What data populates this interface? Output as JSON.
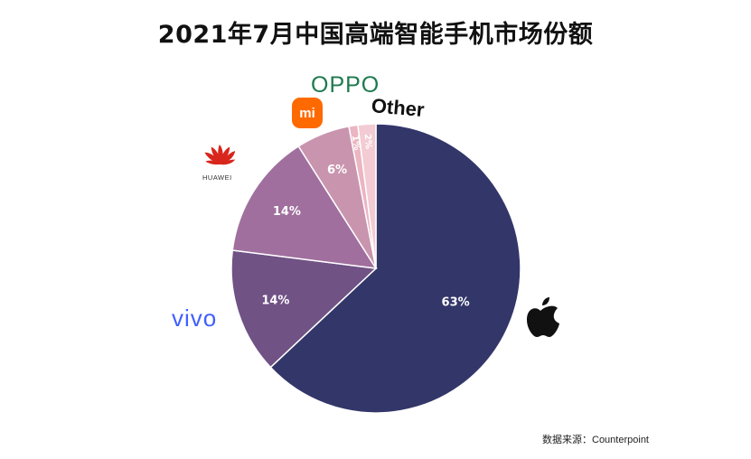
{
  "title": "2021年7月中国高端智能手机市场份额",
  "source": "数据来源：Counterpoint",
  "brands": {
    "oppo": "OPPO",
    "xiaomi": "mi",
    "other": "Other",
    "huawei": "HUAWEI",
    "vivo": "vivo",
    "apple": "apple-logo-icon"
  },
  "chart_data": {
    "type": "pie",
    "title": "2021年7月中国高端智能手机市场份额",
    "start_angle": "12 o'clock, clockwise",
    "slices": [
      {
        "label": "Apple",
        "value": 63,
        "text": "63%",
        "color": "#333669"
      },
      {
        "label": "vivo",
        "value": 14,
        "text": "14%",
        "color": "#705285"
      },
      {
        "label": "HUAWEI",
        "value": 14,
        "text": "14%",
        "color": "#a06f9e"
      },
      {
        "label": "Xiaomi",
        "value": 6,
        "text": "6%",
        "color": "#c994ae"
      },
      {
        "label": "OPPO",
        "value": 1,
        "text": "1%",
        "color": "#ebb5c2"
      },
      {
        "label": "Other",
        "value": 2,
        "text": "2%",
        "color": "#f3cbd3"
      }
    ]
  }
}
